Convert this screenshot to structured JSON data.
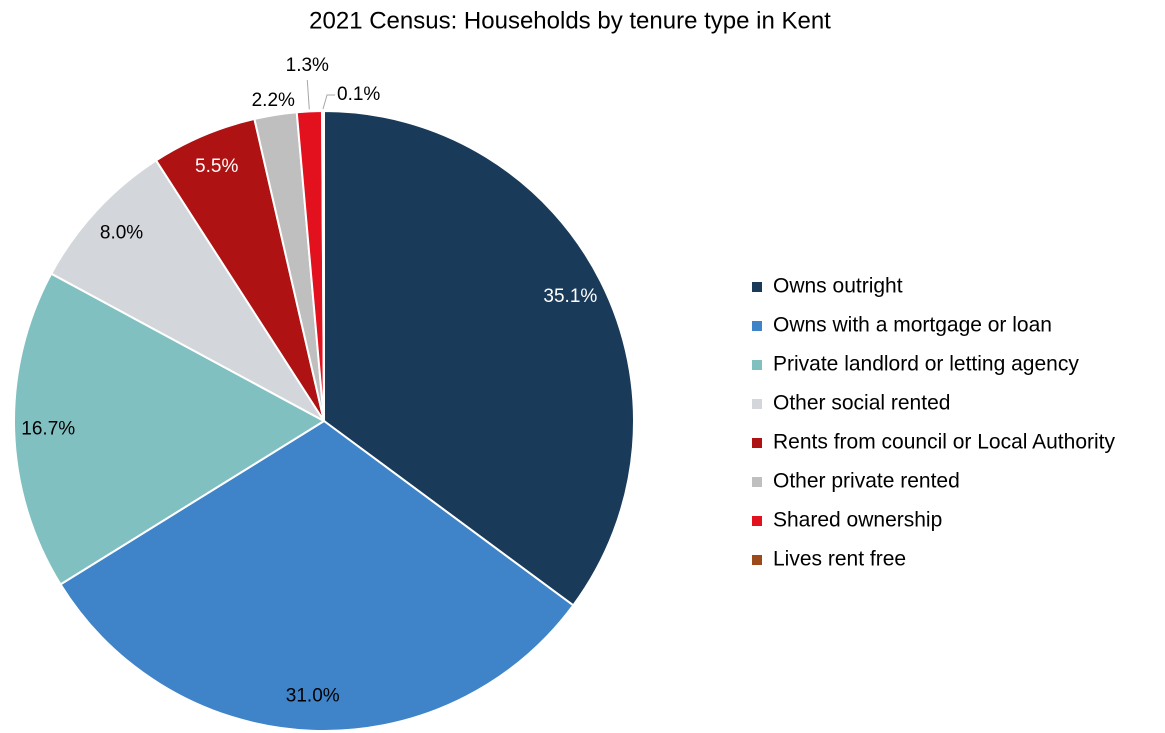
{
  "chart_data": {
    "type": "pie",
    "title": "2021 Census: Households by tenure type in Kent",
    "categories": [
      "Owns outright",
      "Owns with a mortgage or loan",
      "Private landlord or letting agency",
      "Other social rented",
      "Rents from council or Local Authority",
      "Other private rented",
      "Shared ownership",
      "Lives rent free"
    ],
    "values": [
      35.1,
      31.0,
      16.7,
      8.0,
      5.5,
      2.2,
      1.3,
      0.1
    ],
    "value_labels": [
      "35.1%",
      "31.0%",
      "16.7%",
      "8.0%",
      "5.5%",
      "2.2%",
      "1.3%",
      "0.1%"
    ],
    "colors": [
      "#1a3a5a",
      "#3f84c8",
      "#80c0c0",
      "#d3d6da",
      "#ae1212",
      "#bfbfbf",
      "#e3101e",
      "#9c4a1a"
    ],
    "legend": "right"
  }
}
